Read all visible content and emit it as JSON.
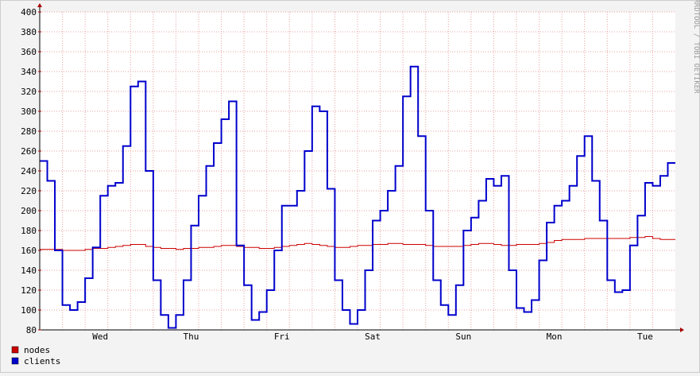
{
  "chart_data": {
    "type": "step-line",
    "watermark": "RRDTOOL / TOBI OETIKER",
    "categories": [
      null,
      null,
      null,
      null,
      null,
      null,
      null,
      null,
      "Wed",
      null,
      null,
      null,
      null,
      null,
      null,
      null,
      null,
      null,
      null,
      null,
      "Thu",
      null,
      null,
      null,
      null,
      null,
      null,
      null,
      null,
      null,
      null,
      null,
      "Fri",
      null,
      null,
      null,
      null,
      null,
      null,
      null,
      null,
      null,
      null,
      null,
      "Sat",
      null,
      null,
      null,
      null,
      null,
      null,
      null,
      null,
      null,
      null,
      null,
      "Sun",
      null,
      null,
      null,
      null,
      null,
      null,
      null,
      null,
      null,
      null,
      null,
      "Mon",
      null,
      null,
      null,
      null,
      null,
      null,
      null,
      null,
      null,
      null,
      null,
      "Tue",
      null,
      null,
      null
    ],
    "series": [
      {
        "name": "nodes",
        "color": "#cc0000",
        "values": [
          161,
          161,
          161,
          160,
          160,
          160,
          161,
          162,
          162,
          163,
          164,
          165,
          166,
          166,
          164,
          163,
          162,
          162,
          161,
          162,
          162,
          163,
          163,
          164,
          165,
          165,
          164,
          163,
          163,
          162,
          162,
          163,
          164,
          165,
          166,
          167,
          166,
          165,
          164,
          163,
          163,
          164,
          165,
          165,
          166,
          166,
          167,
          167,
          166,
          166,
          166,
          165,
          164,
          164,
          164,
          164,
          165,
          166,
          167,
          167,
          166,
          165,
          165,
          166,
          166,
          166,
          167,
          168,
          170,
          171,
          171,
          171,
          172,
          172,
          172,
          172,
          172,
          172,
          173,
          173,
          174,
          172,
          171,
          171
        ]
      },
      {
        "name": "clients",
        "color": "#0000cc",
        "values": [
          250,
          230,
          160,
          105,
          100,
          108,
          132,
          163,
          215,
          225,
          228,
          265,
          325,
          330,
          240,
          130,
          95,
          82,
          95,
          130,
          185,
          215,
          245,
          268,
          292,
          310,
          165,
          125,
          90,
          98,
          120,
          160,
          205,
          205,
          220,
          260,
          305,
          300,
          222,
          130,
          100,
          86,
          100,
          140,
          190,
          200,
          220,
          245,
          315,
          345,
          275,
          200,
          130,
          105,
          95,
          125,
          180,
          193,
          210,
          232,
          225,
          235,
          140,
          102,
          98,
          110,
          150,
          188,
          205,
          210,
          225,
          255,
          275,
          230,
          190,
          130,
          118,
          120,
          165,
          195,
          228,
          225,
          235,
          248
        ]
      }
    ],
    "ylim": [
      80,
      400
    ],
    "yticks": [
      80,
      100,
      120,
      140,
      160,
      180,
      200,
      220,
      240,
      260,
      280,
      300,
      320,
      340,
      360,
      380,
      400
    ],
    "grid": true
  }
}
